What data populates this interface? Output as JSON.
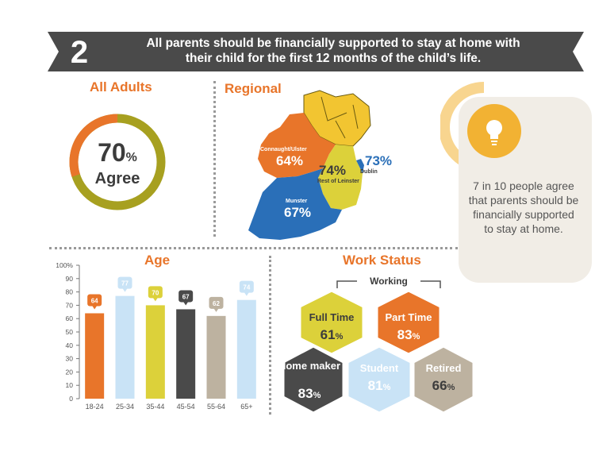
{
  "banner": {
    "number": "2",
    "line1": "All parents should be financially supported to stay at home with",
    "line2": "their child for the first 12 months of the child’s life."
  },
  "all_adults": {
    "title": "All Adults",
    "value": "70",
    "unit": "%",
    "label": "Agree",
    "fraction": 0.7
  },
  "regional": {
    "title": "Regional",
    "regions": [
      {
        "name": "Connaught/Ulster",
        "value": "64%"
      },
      {
        "name": "Rest of Leinster",
        "value": "74%"
      },
      {
        "name": "Dublin",
        "value": "73%"
      },
      {
        "name": "Munster",
        "value": "67%"
      }
    ]
  },
  "callout": {
    "icon": "lightbulb-icon",
    "text": "7 in 10 people agree that parents should be financially supported to stay at home."
  },
  "colors": {
    "orange": "#e8752a",
    "olive": "#a7a020",
    "yellow": "#dcd13a",
    "light_blue": "#c9e3f6",
    "dark_grey": "#4a4a4a",
    "taupe": "#bdb2a0",
    "blue": "#2a6fb8",
    "gold": "#f2b233"
  },
  "chart_data": {
    "type": "bar",
    "title": "Age",
    "categories": [
      "18-24",
      "25-34",
      "35-44",
      "45-54",
      "55-64",
      "65+"
    ],
    "values": [
      64,
      77,
      70,
      67,
      62,
      74
    ],
    "colors": [
      "#e8752a",
      "#c9e3f6",
      "#dcd13a",
      "#4a4a4a",
      "#bdb2a0",
      "#c9e3f6"
    ],
    "ylim": [
      0,
      100
    ],
    "yticks": [
      "0",
      "10",
      "20",
      "30",
      "40",
      "50",
      "60",
      "70",
      "80",
      "90",
      "100%"
    ],
    "xlabel": "",
    "ylabel": ""
  },
  "work_status": {
    "title": "Work Status",
    "group_label": "Working",
    "items": [
      {
        "label": "Full Time",
        "value": "61",
        "unit": "%"
      },
      {
        "label": "Part Time",
        "value": "83",
        "unit": "%"
      },
      {
        "label": "Home maker",
        "value": "83",
        "unit": "%"
      },
      {
        "label": "Student",
        "value": "81",
        "unit": "%"
      },
      {
        "label": "Retired",
        "value": "66",
        "unit": "%"
      }
    ]
  }
}
